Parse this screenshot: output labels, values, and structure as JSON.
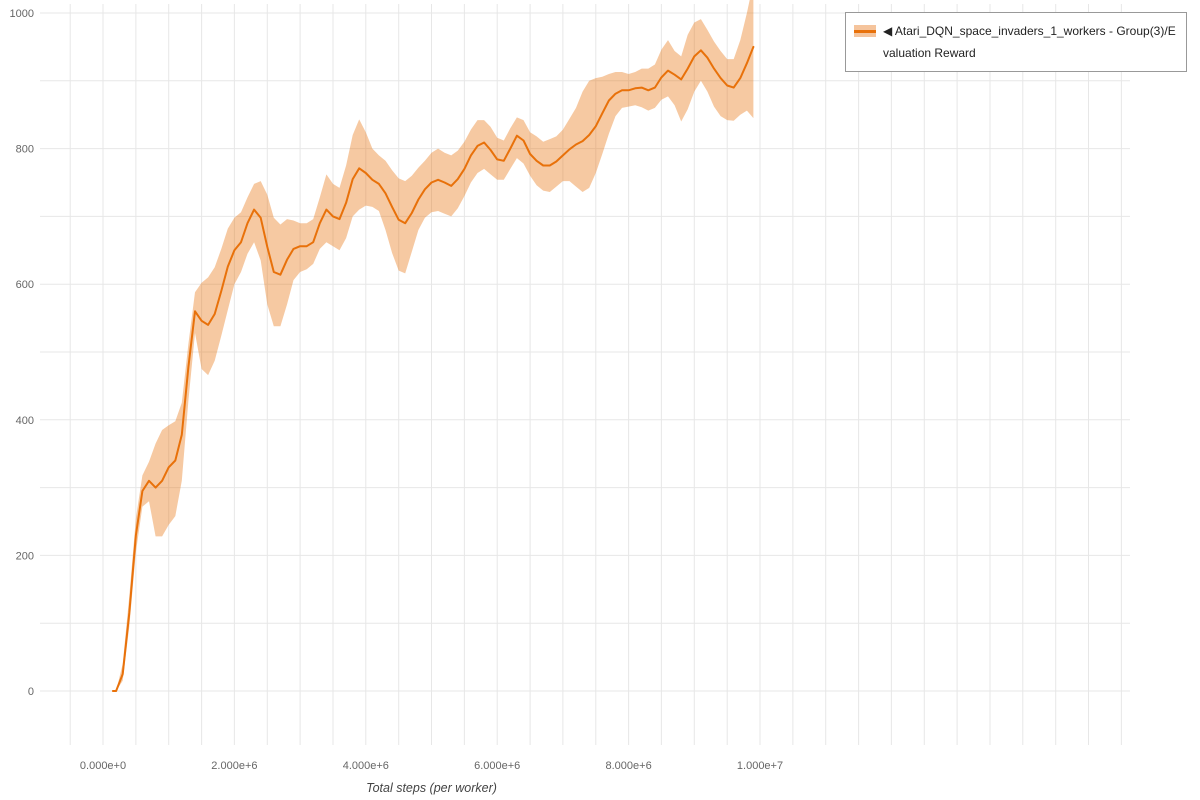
{
  "legend": {
    "toggle_icon": "◀"
  },
  "axes": {
    "x_title": "Total steps (per worker)"
  },
  "chart_data": {
    "type": "line",
    "title": "",
    "xlabel": "Total steps (per worker)",
    "ylabel": "",
    "xlim": [
      0,
      10000000
    ],
    "ylim": [
      0,
      1000
    ],
    "grid": true,
    "legend_position": "top-right",
    "x_ticks": [
      {
        "value": 0,
        "label": "0.000e+0"
      },
      {
        "value": 2000000,
        "label": "2.000e+6"
      },
      {
        "value": 4000000,
        "label": "4.000e+6"
      },
      {
        "value": 6000000,
        "label": "6.000e+6"
      },
      {
        "value": 8000000,
        "label": "8.000e+6"
      },
      {
        "value": 10000000,
        "label": "1.000e+7"
      }
    ],
    "y_ticks": [
      {
        "value": 0,
        "label": "0"
      },
      {
        "value": 200,
        "label": "200"
      },
      {
        "value": 400,
        "label": "400"
      },
      {
        "value": 600,
        "label": "600"
      },
      {
        "value": 800,
        "label": "800"
      },
      {
        "value": 1000,
        "label": "1000"
      }
    ],
    "series": [
      {
        "name": "Atari_DQN_space_invaders_1_workers - Group(3)/Evaluation Reward",
        "color": "#e8710a",
        "band_opacity": 0.38,
        "x": [
          150000,
          200000,
          300000,
          400000,
          500000,
          600000,
          700000,
          800000,
          900000,
          1000000,
          1100000,
          1200000,
          1300000,
          1400000,
          1500000,
          1600000,
          1700000,
          1800000,
          1900000,
          2000000,
          2100000,
          2200000,
          2300000,
          2400000,
          2500000,
          2600000,
          2700000,
          2800000,
          2900000,
          3000000,
          3100000,
          3200000,
          3300000,
          3400000,
          3500000,
          3600000,
          3700000,
          3800000,
          3900000,
          4000000,
          4100000,
          4200000,
          4300000,
          4400000,
          4500000,
          4600000,
          4700000,
          4800000,
          4900000,
          5000000,
          5100000,
          5200000,
          5300000,
          5400000,
          5500000,
          5600000,
          5700000,
          5800000,
          5900000,
          6000000,
          6100000,
          6200000,
          6300000,
          6400000,
          6500000,
          6600000,
          6700000,
          6800000,
          6900000,
          7000000,
          7100000,
          7200000,
          7300000,
          7400000,
          7500000,
          7600000,
          7700000,
          7800000,
          7900000,
          8000000,
          8100000,
          8200000,
          8300000,
          8400000,
          8500000,
          8600000,
          8700000,
          8800000,
          8900000,
          9000000,
          9100000,
          9200000,
          9300000,
          9400000,
          9500000,
          9600000,
          9700000,
          9800000,
          9900000
        ],
        "mean": [
          0,
          0,
          25,
          115,
          230,
          295,
          310,
          300,
          310,
          330,
          340,
          378,
          478,
          560,
          546,
          540,
          556,
          590,
          626,
          650,
          662,
          690,
          710,
          698,
          655,
          618,
          614,
          636,
          652,
          656,
          656,
          662,
          690,
          710,
          700,
          696,
          720,
          755,
          771,
          764,
          754,
          748,
          734,
          714,
          695,
          690,
          705,
          725,
          740,
          750,
          754,
          750,
          745,
          755,
          770,
          790,
          804,
          809,
          798,
          784,
          782,
          800,
          819,
          812,
          792,
          782,
          775,
          775,
          781,
          790,
          799,
          806,
          811,
          820,
          833,
          852,
          871,
          881,
          886,
          886,
          889,
          890,
          886,
          890,
          905,
          915,
          909,
          902,
          918,
          936,
          945,
          934,
          918,
          904,
          893,
          890,
          904,
          926,
          950
        ],
        "lower": [
          0,
          0,
          15,
          95,
          205,
          272,
          280,
          228,
          228,
          245,
          258,
          310,
          428,
          528,
          475,
          466,
          487,
          524,
          562,
          600,
          618,
          645,
          662,
          635,
          570,
          538,
          538,
          570,
          606,
          618,
          622,
          630,
          652,
          662,
          656,
          650,
          668,
          700,
          710,
          716,
          714,
          708,
          680,
          646,
          620,
          616,
          648,
          680,
          698,
          706,
          708,
          704,
          700,
          712,
          730,
          750,
          764,
          770,
          762,
          754,
          754,
          770,
          786,
          778,
          760,
          746,
          738,
          736,
          744,
          752,
          752,
          744,
          736,
          742,
          764,
          792,
          822,
          848,
          860,
          862,
          864,
          861,
          856,
          860,
          872,
          877,
          864,
          840,
          858,
          884,
          900,
          884,
          862,
          848,
          842,
          841,
          850,
          856,
          845
        ],
        "upper": [
          0,
          0,
          40,
          140,
          255,
          318,
          338,
          365,
          385,
          392,
          398,
          425,
          512,
          588,
          602,
          610,
          625,
          652,
          682,
          698,
          706,
          728,
          748,
          752,
          732,
          698,
          688,
          696,
          694,
          690,
          690,
          696,
          728,
          762,
          748,
          742,
          775,
          820,
          843,
          824,
          800,
          790,
          782,
          768,
          756,
          752,
          760,
          772,
          782,
          794,
          800,
          794,
          790,
          797,
          810,
          828,
          842,
          842,
          832,
          816,
          812,
          830,
          846,
          842,
          824,
          818,
          810,
          814,
          818,
          828,
          844,
          860,
          884,
          900,
          904,
          906,
          910,
          913,
          913,
          910,
          913,
          918,
          918,
          924,
          946,
          960,
          944,
          936,
          968,
          986,
          991,
          975,
          958,
          944,
          932,
          932,
          960,
          1000,
          1045
        ]
      }
    ]
  }
}
